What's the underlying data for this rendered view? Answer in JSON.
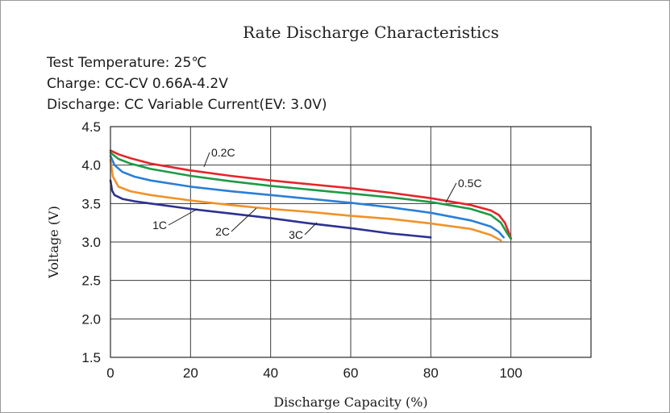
{
  "chart_data": {
    "type": "line",
    "title": "Rate Discharge Characteristics",
    "info_lines": [
      "Test Temperature: 25℃",
      "Charge: CC-CV 0.66A-4.2V",
      "Discharge: CC Variable Current(EV: 3.0V)"
    ],
    "xlabel": "Discharge Capacity (%)",
    "ylabel": "Voltage (V)",
    "xlim": [
      0,
      120
    ],
    "ylim": [
      1.5,
      4.5
    ],
    "xticks": [
      0,
      20,
      40,
      60,
      80,
      100
    ],
    "xtick_labels": [
      "0",
      "20",
      "40",
      "60",
      "80",
      "100"
    ],
    "yticks": [
      1.5,
      2.0,
      2.5,
      3.0,
      3.5,
      4.0,
      4.5
    ],
    "ytick_labels": [
      "1.5",
      "2.0",
      "2.5",
      "3.0",
      "3.5",
      "4.0",
      "4.5"
    ],
    "grid": true,
    "series": [
      {
        "name": "0.2C",
        "color": "#e3262b",
        "x": [
          0,
          2,
          5,
          10,
          20,
          30,
          40,
          50,
          60,
          70,
          80,
          90,
          95,
          97,
          98.5,
          99.5,
          100
        ],
        "y": [
          4.19,
          4.14,
          4.09,
          4.02,
          3.93,
          3.86,
          3.8,
          3.75,
          3.7,
          3.64,
          3.57,
          3.48,
          3.41,
          3.35,
          3.25,
          3.12,
          3.05
        ],
        "label_at": [
          25,
          4.12
        ]
      },
      {
        "name": "0.5C",
        "color": "#1f9a47",
        "x": [
          0,
          2,
          5,
          10,
          20,
          30,
          40,
          50,
          60,
          70,
          80,
          90,
          95,
          97.5,
          99,
          100
        ],
        "y": [
          4.16,
          4.08,
          4.02,
          3.95,
          3.86,
          3.79,
          3.73,
          3.68,
          3.63,
          3.58,
          3.52,
          3.43,
          3.35,
          3.25,
          3.12,
          3.04
        ],
        "label_at": [
          88,
          3.76
        ]
      },
      {
        "name": "1C",
        "color": "#2a7fd6",
        "x": [
          0,
          1,
          3,
          6,
          10,
          20,
          30,
          40,
          50,
          60,
          70,
          80,
          90,
          95,
          97,
          98.2
        ],
        "y": [
          4.12,
          4.0,
          3.91,
          3.85,
          3.8,
          3.72,
          3.66,
          3.61,
          3.56,
          3.51,
          3.45,
          3.38,
          3.28,
          3.2,
          3.13,
          3.06
        ],
        "label_at": [
          12,
          3.36
        ]
      },
      {
        "name": "2C",
        "color": "#f0922a",
        "x": [
          0,
          0.6,
          2,
          5,
          10,
          20,
          30,
          40,
          50,
          60,
          70,
          80,
          90,
          95,
          97.5
        ],
        "y": [
          4.07,
          3.85,
          3.72,
          3.66,
          3.61,
          3.54,
          3.48,
          3.43,
          3.39,
          3.34,
          3.3,
          3.24,
          3.17,
          3.09,
          3.02
        ],
        "label_at": [
          27,
          3.17
        ]
      },
      {
        "name": "3C",
        "color": "#2e3190",
        "x": [
          0,
          0.4,
          1,
          3,
          6,
          10,
          20,
          30,
          40,
          50,
          60,
          70,
          80
        ],
        "y": [
          3.8,
          3.67,
          3.61,
          3.56,
          3.53,
          3.5,
          3.43,
          3.37,
          3.31,
          3.24,
          3.18,
          3.11,
          3.06
        ],
        "label_at": [
          45.5,
          3.08
        ]
      }
    ],
    "legend": "inline labels"
  }
}
